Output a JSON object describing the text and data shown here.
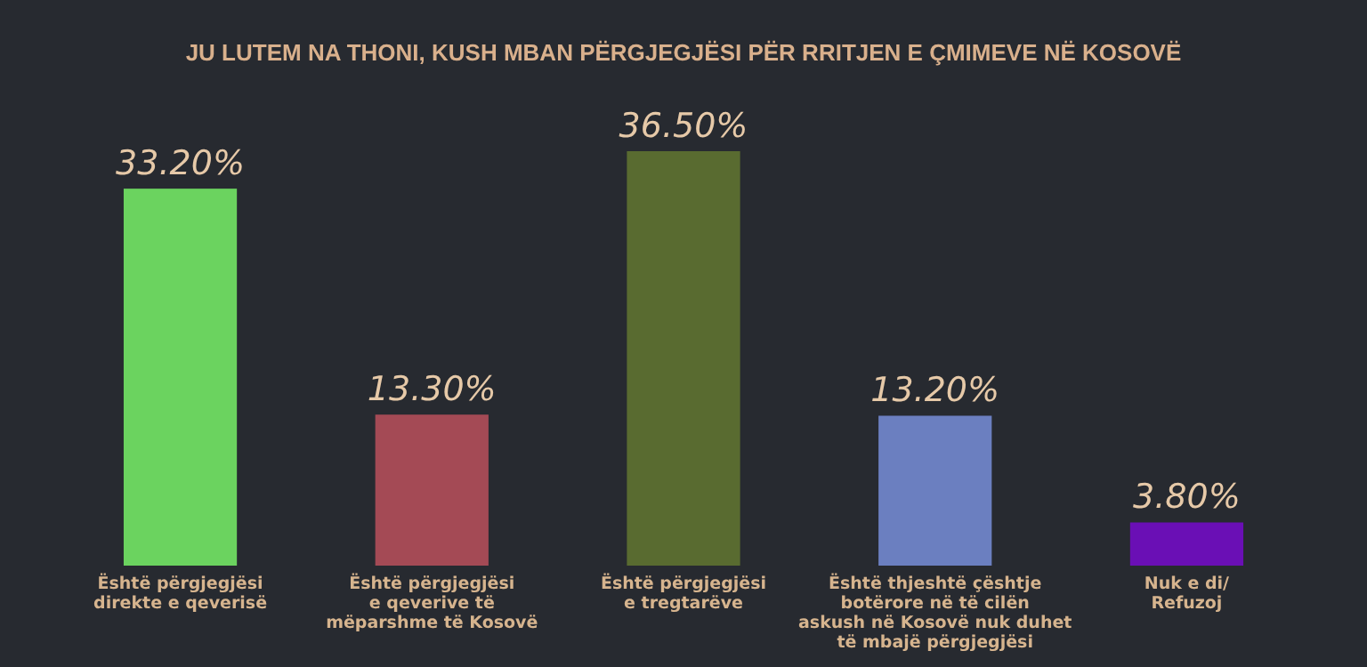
{
  "chart_data": {
    "type": "bar",
    "title": "JU LUTEM NA THONI, KUSH MBAN PËRGJEGJËSI PËR RRITJEN E ÇMIMEVE NË KOSOVË",
    "categories": [
      "Është përgjegjësi\ndirekte e qeverisë",
      "Është përgjegjësi\ne qeverive të\nmëparshme të Kosovë",
      "Është përgjegjësi\ne tregtarëve",
      "Është thjeshtë çështje\nbotërore në të cilën\naskush në Kosovë nuk duhet\ntë mbajë përgjegjësi",
      "Nuk e di/\nRefuzoj"
    ],
    "values": [
      33.2,
      13.3,
      36.5,
      13.2,
      3.8
    ],
    "value_labels": [
      "33.20%",
      "13.30%",
      "36.50%",
      "13.20%",
      "3.80%"
    ],
    "colors": [
      "#6bd35f",
      "#a44a55",
      "#596b30",
      "#6b7fc0",
      "#6a0fb5"
    ]
  }
}
